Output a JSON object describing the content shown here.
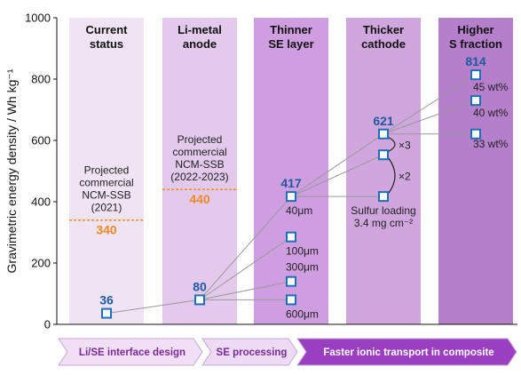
{
  "chart_data": {
    "type": "scatter",
    "ylabel": "Gravimetric energy density / Wh kg⁻¹",
    "ylim": [
      0,
      1000
    ],
    "yticks": [
      "0",
      "200",
      "400",
      "600",
      "800",
      "1000"
    ],
    "grid": false,
    "stages": [
      {
        "name": "current",
        "line1": "Current",
        "line2": "status",
        "color": "#f0e3f4"
      },
      {
        "name": "li-metal",
        "line1": "Li-metal",
        "line2": "anode",
        "color": "#e3c9ec"
      },
      {
        "name": "thinner-se",
        "line1": "Thinner",
        "line2": "SE layer",
        "color": "#cf9ee0"
      },
      {
        "name": "thicker-cathode",
        "line1": "Thicker",
        "line2": "cathode",
        "color": "#cfa6dd"
      },
      {
        "name": "higher-s",
        "line1": "Higher",
        "line2": "S fraction",
        "color": "#b67fcc"
      }
    ],
    "points": [
      {
        "id": "p36",
        "stage": 0,
        "y": 36,
        "label": "36",
        "note": ""
      },
      {
        "id": "p80",
        "stage": 1,
        "y": 80,
        "label": "80",
        "note": ""
      },
      {
        "id": "p600um",
        "stage": 2,
        "y": 80,
        "label": "",
        "note": "600μm"
      },
      {
        "id": "p300um",
        "stage": 2,
        "y": 140,
        "label": "",
        "note": "300μm"
      },
      {
        "id": "p100um",
        "stage": 2,
        "y": 285,
        "label": "",
        "note": "100μm"
      },
      {
        "id": "p417",
        "stage": 2,
        "y": 417,
        "label": "417",
        "note": "40μm"
      },
      {
        "id": "pc417",
        "stage": 3,
        "y": 417,
        "label": "",
        "note": ""
      },
      {
        "id": "pc553",
        "stage": 3,
        "y": 553,
        "label": "",
        "note": ""
      },
      {
        "id": "p621",
        "stage": 3,
        "y": 621,
        "label": "621",
        "note": ""
      },
      {
        "id": "p33",
        "stage": 4,
        "y": 621,
        "label": "",
        "note": "33 wt%"
      },
      {
        "id": "p40",
        "stage": 4,
        "y": 730,
        "label": "",
        "note": "40 wt%"
      },
      {
        "id": "p814",
        "stage": 4,
        "y": 814,
        "label": "814",
        "note": "45 wt%"
      }
    ],
    "links": [
      [
        "p36",
        "p80"
      ],
      [
        "p80",
        "p600um"
      ],
      [
        "p80",
        "p300um"
      ],
      [
        "p80",
        "p100um"
      ],
      [
        "p80",
        "p417"
      ],
      [
        "p417",
        "pc417"
      ],
      [
        "p417",
        "pc553"
      ],
      [
        "p417",
        "p621"
      ],
      [
        "p621",
        "p33"
      ],
      [
        "p621",
        "p40"
      ],
      [
        "p621",
        "p814"
      ]
    ],
    "projections": [
      {
        "stage": 0,
        "lines": [
          "Projected",
          "commercial",
          "NCM-SSB",
          "(2021)"
        ],
        "value": 340,
        "value_label": "340"
      },
      {
        "stage": 1,
        "lines": [
          "Projected",
          "commercial",
          "NCM-SSB",
          "(2022-2023)"
        ],
        "value": 440,
        "value_label": "440"
      }
    ],
    "multipliers": [
      "×3",
      "×2"
    ],
    "sulfur_note": [
      "Sulfur loading",
      "3.4 mg cm⁻²"
    ],
    "bands": [
      {
        "label": "Li/SE interface design",
        "color": "#f1dff5",
        "text_color": "#7a2a95"
      },
      {
        "label": "SE processing",
        "color": "#eddaf3",
        "text_color": "#7a2a95"
      },
      {
        "label": "Faster ionic transport in composite",
        "color": "#9a3fc0",
        "text_color": "#ffffff"
      }
    ],
    "colors": {
      "marker": "#1f6fb8",
      "value_text": "#1f5a9e",
      "projection": "#f08a24",
      "link": "#9a9a9a"
    }
  }
}
